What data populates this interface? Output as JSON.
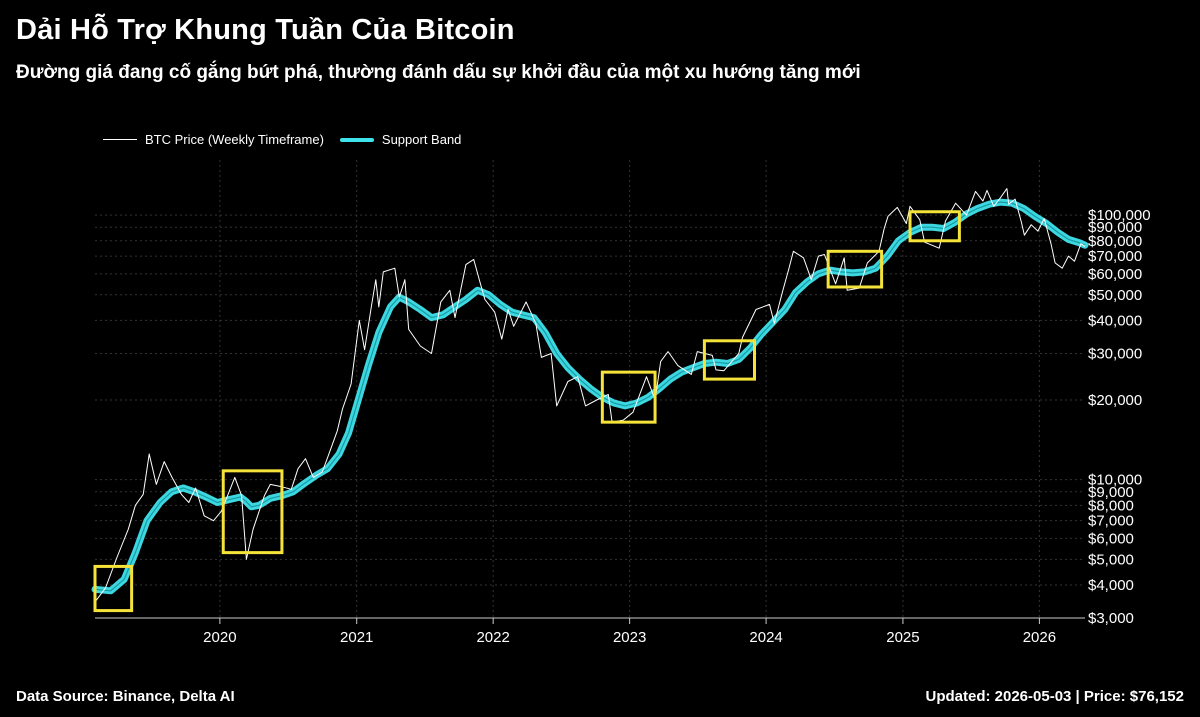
{
  "header": {
    "title": "Dải Hỗ Trợ Khung Tuần Của Bitcoin",
    "subtitle": "Đường giá đang cố gắng bứt phá, thường đánh dấu sự khởi đầu của một xu hướng tăng mới"
  },
  "footer": {
    "source": "Data Source: Binance, Delta AI",
    "updated": "Updated: 2026-05-03 | Price: $76,152"
  },
  "colors": {
    "background": "#000000",
    "price": "#ffffff",
    "band": "#3fe3ec",
    "highlight": "#f5e33a",
    "grid": "#333333"
  },
  "chart_data": {
    "type": "line",
    "title": "Dải Hỗ Trợ Khung Tuần Của Bitcoin",
    "y_scale": "log",
    "ylim": [
      3000,
      130000
    ],
    "xlim": [
      "2019-02-01",
      "2026-05-03"
    ],
    "grid": true,
    "legend": "top-left",
    "x_ticks": [
      {
        "label": "2020",
        "value": "2020-01-01"
      },
      {
        "label": "2021",
        "value": "2021-01-01"
      },
      {
        "label": "2022",
        "value": "2022-01-01"
      },
      {
        "label": "2023",
        "value": "2023-01-01"
      },
      {
        "label": "2024",
        "value": "2024-01-01"
      },
      {
        "label": "2025",
        "value": "2025-01-01"
      },
      {
        "label": "2026",
        "value": "2026-01-01"
      }
    ],
    "y_ticks": [
      {
        "label": "$3,000",
        "value": 3000
      },
      {
        "label": "$4,000",
        "value": 4000
      },
      {
        "label": "$5,000",
        "value": 5000
      },
      {
        "label": "$6,000",
        "value": 6000
      },
      {
        "label": "$7,000",
        "value": 7000
      },
      {
        "label": "$8,000",
        "value": 8000
      },
      {
        "label": "$9,000",
        "value": 9000
      },
      {
        "label": "$10,000",
        "value": 10000
      },
      {
        "label": "$20,000",
        "value": 20000
      },
      {
        "label": "$30,000",
        "value": 30000
      },
      {
        "label": "$40,000",
        "value": 40000
      },
      {
        "label": "$50,000",
        "value": 50000
      },
      {
        "label": "$60,000",
        "value": 60000
      },
      {
        "label": "$70,000",
        "value": 70000
      },
      {
        "label": "$80,000",
        "value": 80000
      },
      {
        "label": "$90,000",
        "value": 90000
      },
      {
        "label": "$100,000",
        "value": 100000
      }
    ],
    "series": [
      {
        "name": "BTC Price (Weekly Timeframe)",
        "points": [
          [
            "2019-02-01",
            3450
          ],
          [
            "2019-03-01",
            3900
          ],
          [
            "2019-04-01",
            5100
          ],
          [
            "2019-05-01",
            6500
          ],
          [
            "2019-05-20",
            8000
          ],
          [
            "2019-06-10",
            8800
          ],
          [
            "2019-06-26",
            12500
          ],
          [
            "2019-07-15",
            9600
          ],
          [
            "2019-08-05",
            11700
          ],
          [
            "2019-08-26",
            10200
          ],
          [
            "2019-09-20",
            8800
          ],
          [
            "2019-10-10",
            8200
          ],
          [
            "2019-10-28",
            9300
          ],
          [
            "2019-11-20",
            7300
          ],
          [
            "2019-12-15",
            7000
          ],
          [
            "2020-01-05",
            7600
          ],
          [
            "2020-02-10",
            10200
          ],
          [
            "2020-02-28",
            8700
          ],
          [
            "2020-03-12",
            5000
          ],
          [
            "2020-03-30",
            6500
          ],
          [
            "2020-04-29",
            8700
          ],
          [
            "2020-05-15",
            9600
          ],
          [
            "2020-06-15",
            9400
          ],
          [
            "2020-07-10",
            9200
          ],
          [
            "2020-07-28",
            11000
          ],
          [
            "2020-08-17",
            12000
          ],
          [
            "2020-09-07",
            10200
          ],
          [
            "2020-10-01",
            10700
          ],
          [
            "2020-10-22",
            12900
          ],
          [
            "2020-11-10",
            15300
          ],
          [
            "2020-11-24",
            18500
          ],
          [
            "2020-12-17",
            23000
          ],
          [
            "2021-01-08",
            40000
          ],
          [
            "2021-01-22",
            31000
          ],
          [
            "2021-02-10",
            46000
          ],
          [
            "2021-02-21",
            57000
          ],
          [
            "2021-03-01",
            45000
          ],
          [
            "2021-03-13",
            61000
          ],
          [
            "2021-04-13",
            63000
          ],
          [
            "2021-04-25",
            49000
          ],
          [
            "2021-05-10",
            57000
          ],
          [
            "2021-05-20",
            37000
          ],
          [
            "2021-06-20",
            32000
          ],
          [
            "2021-07-20",
            30000
          ],
          [
            "2021-08-14",
            47000
          ],
          [
            "2021-09-07",
            52000
          ],
          [
            "2021-09-21",
            41000
          ],
          [
            "2021-10-20",
            65000
          ],
          [
            "2021-11-10",
            68000
          ],
          [
            "2021-11-25",
            57000
          ],
          [
            "2021-12-10",
            48000
          ],
          [
            "2022-01-05",
            43000
          ],
          [
            "2022-01-24",
            34000
          ],
          [
            "2022-02-10",
            44000
          ],
          [
            "2022-02-25",
            38000
          ],
          [
            "2022-03-30",
            47000
          ],
          [
            "2022-04-25",
            39000
          ],
          [
            "2022-05-10",
            29000
          ],
          [
            "2022-06-05",
            30000
          ],
          [
            "2022-06-20",
            19000
          ],
          [
            "2022-07-20",
            23500
          ],
          [
            "2022-08-15",
            24500
          ],
          [
            "2022-09-05",
            19000
          ],
          [
            "2022-10-05",
            20000
          ],
          [
            "2022-11-05",
            21000
          ],
          [
            "2022-11-15",
            16500
          ],
          [
            "2022-12-15",
            16800
          ],
          [
            "2023-01-10",
            18000
          ],
          [
            "2023-02-15",
            24500
          ],
          [
            "2023-03-10",
            20000
          ],
          [
            "2023-03-25",
            28000
          ],
          [
            "2023-04-14",
            30500
          ],
          [
            "2023-05-10",
            27000
          ],
          [
            "2023-06-15",
            25000
          ],
          [
            "2023-07-01",
            30500
          ],
          [
            "2023-08-10",
            29500
          ],
          [
            "2023-08-20",
            26000
          ],
          [
            "2023-09-10",
            25800
          ],
          [
            "2023-10-20",
            30000
          ],
          [
            "2023-10-30",
            34500
          ],
          [
            "2023-12-05",
            44000
          ],
          [
            "2024-01-10",
            46000
          ],
          [
            "2024-01-23",
            39000
          ],
          [
            "2024-02-15",
            52000
          ],
          [
            "2024-03-01",
            62000
          ],
          [
            "2024-03-14",
            73000
          ],
          [
            "2024-04-10",
            69000
          ],
          [
            "2024-05-01",
            57000
          ],
          [
            "2024-05-20",
            70000
          ],
          [
            "2024-06-05",
            71000
          ],
          [
            "2024-07-05",
            55000
          ],
          [
            "2024-07-28",
            69000
          ],
          [
            "2024-08-05",
            52000
          ],
          [
            "2024-09-06",
            53000
          ],
          [
            "2024-09-28",
            66000
          ],
          [
            "2024-10-29",
            73000
          ],
          [
            "2024-11-12",
            89000
          ],
          [
            "2024-11-22",
            99000
          ],
          [
            "2024-12-17",
            107000
          ],
          [
            "2025-01-10",
            93000
          ],
          [
            "2025-01-20",
            108000
          ],
          [
            "2025-02-15",
            96000
          ],
          [
            "2025-02-28",
            79000
          ],
          [
            "2025-03-10",
            78000
          ],
          [
            "2025-04-08",
            75000
          ],
          [
            "2025-04-25",
            95000
          ],
          [
            "2025-05-22",
            111000
          ],
          [
            "2025-06-20",
            100000
          ],
          [
            "2025-07-14",
            123000
          ],
          [
            "2025-08-03",
            113000
          ],
          [
            "2025-08-14",
            124000
          ],
          [
            "2025-09-01",
            108000
          ],
          [
            "2025-09-20",
            117000
          ],
          [
            "2025-10-06",
            126000
          ],
          [
            "2025-10-11",
            110000
          ],
          [
            "2025-10-28",
            115000
          ],
          [
            "2025-11-14",
            94000
          ],
          [
            "2025-11-22",
            84000
          ],
          [
            "2025-12-10",
            92000
          ],
          [
            "2025-12-28",
            87000
          ],
          [
            "2026-01-14",
            97000
          ],
          [
            "2026-02-01",
            78000
          ],
          [
            "2026-02-12",
            66000
          ],
          [
            "2026-03-03",
            63000
          ],
          [
            "2026-03-20",
            70000
          ],
          [
            "2026-04-05",
            67000
          ],
          [
            "2026-04-22",
            78000
          ],
          [
            "2026-05-03",
            76152
          ]
        ]
      },
      {
        "name": "Support Band",
        "points": [
          [
            "2019-02-01",
            3850
          ],
          [
            "2019-03-15",
            3800
          ],
          [
            "2019-04-20",
            4200
          ],
          [
            "2019-05-20",
            5300
          ],
          [
            "2019-06-20",
            7000
          ],
          [
            "2019-07-25",
            8200
          ],
          [
            "2019-08-25",
            9000
          ],
          [
            "2019-09-25",
            9300
          ],
          [
            "2019-10-25",
            9000
          ],
          [
            "2019-11-25",
            8600
          ],
          [
            "2019-12-25",
            8200
          ],
          [
            "2020-01-25",
            8400
          ],
          [
            "2020-02-25",
            8600
          ],
          [
            "2020-03-10",
            8300
          ],
          [
            "2020-03-25",
            7900
          ],
          [
            "2020-04-15",
            8000
          ],
          [
            "2020-05-15",
            8500
          ],
          [
            "2020-06-15",
            8700
          ],
          [
            "2020-07-15",
            9000
          ],
          [
            "2020-08-15",
            9700
          ],
          [
            "2020-09-15",
            10400
          ],
          [
            "2020-10-15",
            11000
          ],
          [
            "2020-11-15",
            12500
          ],
          [
            "2020-12-10",
            15000
          ],
          [
            "2021-01-05",
            20000
          ],
          [
            "2021-02-01",
            27000
          ],
          [
            "2021-03-01",
            36000
          ],
          [
            "2021-04-01",
            45000
          ],
          [
            "2021-04-25",
            49000
          ],
          [
            "2021-05-20",
            47000
          ],
          [
            "2021-06-20",
            44000
          ],
          [
            "2021-07-20",
            41000
          ],
          [
            "2021-08-20",
            42000
          ],
          [
            "2021-09-20",
            45000
          ],
          [
            "2021-10-20",
            48000
          ],
          [
            "2021-11-20",
            52000
          ],
          [
            "2021-12-20",
            50000
          ],
          [
            "2022-01-20",
            46000
          ],
          [
            "2022-02-20",
            43000
          ],
          [
            "2022-03-20",
            42000
          ],
          [
            "2022-04-20",
            41000
          ],
          [
            "2022-05-20",
            36000
          ],
          [
            "2022-06-20",
            30000
          ],
          [
            "2022-07-20",
            26500
          ],
          [
            "2022-08-20",
            24000
          ],
          [
            "2022-09-20",
            22000
          ],
          [
            "2022-10-20",
            20500
          ],
          [
            "2022-11-20",
            19500
          ],
          [
            "2022-12-20",
            19000
          ],
          [
            "2023-01-20",
            19500
          ],
          [
            "2023-02-20",
            20500
          ],
          [
            "2023-03-20",
            22000
          ],
          [
            "2023-04-20",
            24000
          ],
          [
            "2023-05-20",
            25500
          ],
          [
            "2023-06-20",
            26500
          ],
          [
            "2023-07-20",
            27500
          ],
          [
            "2023-08-20",
            27800
          ],
          [
            "2023-09-20",
            27500
          ],
          [
            "2023-10-20",
            28500
          ],
          [
            "2023-11-20",
            31500
          ],
          [
            "2023-12-20",
            35500
          ],
          [
            "2024-01-20",
            39500
          ],
          [
            "2024-02-20",
            44000
          ],
          [
            "2024-03-20",
            51000
          ],
          [
            "2024-04-20",
            56000
          ],
          [
            "2024-05-20",
            60000
          ],
          [
            "2024-06-20",
            62000
          ],
          [
            "2024-07-20",
            61000
          ],
          [
            "2024-08-20",
            60500
          ],
          [
            "2024-09-20",
            61000
          ],
          [
            "2024-10-20",
            63000
          ],
          [
            "2024-11-20",
            70000
          ],
          [
            "2024-12-20",
            80000
          ],
          [
            "2025-01-20",
            86000
          ],
          [
            "2025-02-20",
            90000
          ],
          [
            "2025-03-20",
            90000
          ],
          [
            "2025-04-20",
            89000
          ],
          [
            "2025-05-20",
            94000
          ],
          [
            "2025-06-20",
            101000
          ],
          [
            "2025-07-20",
            106000
          ],
          [
            "2025-08-20",
            110000
          ],
          [
            "2025-09-20",
            112000
          ],
          [
            "2025-10-20",
            111000
          ],
          [
            "2025-11-20",
            106000
          ],
          [
            "2025-12-20",
            99000
          ],
          [
            "2026-01-20",
            93000
          ],
          [
            "2026-02-20",
            86000
          ],
          [
            "2026-03-20",
            81000
          ],
          [
            "2026-04-20",
            78500
          ],
          [
            "2026-05-03",
            77000
          ]
        ]
      }
    ],
    "highlights": [
      {
        "x0": "2019-02-01",
        "x1": "2019-05-10",
        "y0": 3200,
        "y1": 4700
      },
      {
        "x0": "2020-01-10",
        "x1": "2020-06-15",
        "y0": 5300,
        "y1": 10800
      },
      {
        "x0": "2022-10-20",
        "x1": "2023-03-10",
        "y0": 16500,
        "y1": 25500
      },
      {
        "x0": "2023-07-20",
        "x1": "2023-12-01",
        "y0": 24000,
        "y1": 33500
      },
      {
        "x0": "2024-06-15",
        "x1": "2024-11-05",
        "y0": 53500,
        "y1": 73000
      },
      {
        "x0": "2025-01-20",
        "x1": "2025-06-01",
        "y0": 80000,
        "y1": 103000
      }
    ]
  }
}
